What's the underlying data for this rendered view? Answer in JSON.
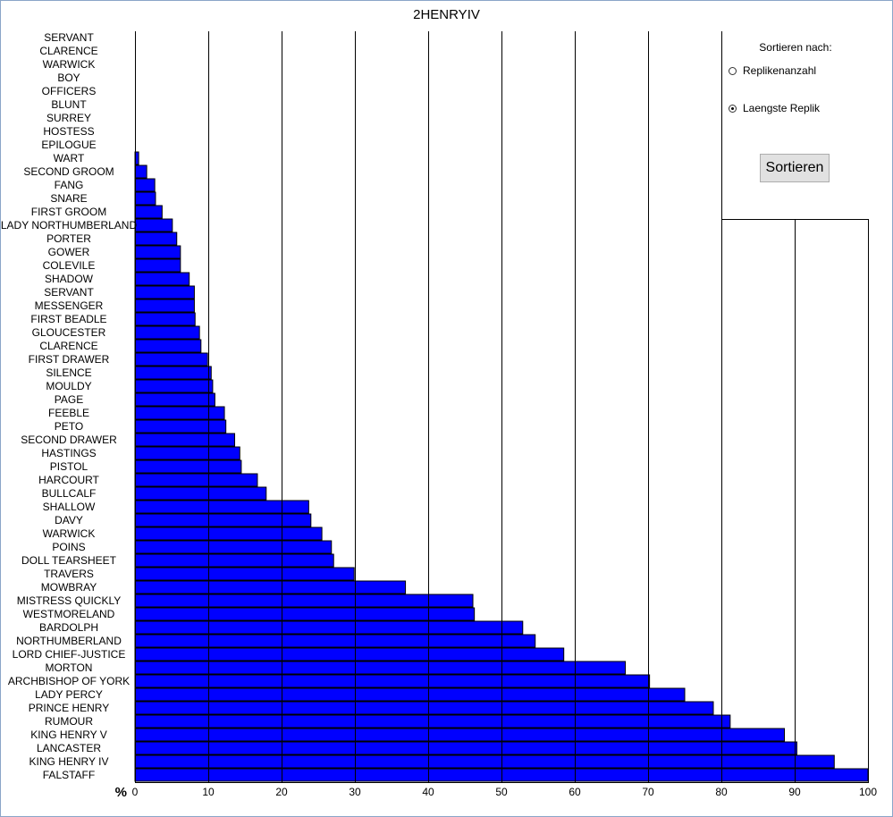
{
  "chart_data": {
    "type": "bar",
    "orientation": "horizontal",
    "title": "2HENRYIV",
    "xlabel": "%",
    "xlim": [
      0,
      100
    ],
    "xticks": [
      0,
      10,
      20,
      30,
      40,
      50,
      60,
      70,
      80,
      90,
      100
    ],
    "grid": true,
    "bar_color": "#0000ff",
    "categories": [
      "SERVANT",
      "CLARENCE",
      "WARWICK",
      "BOY",
      "OFFICERS",
      "BLUNT",
      "SURREY",
      "HOSTESS",
      "EPILOGUE",
      "WART",
      "SECOND GROOM",
      "FANG",
      "SNARE",
      "FIRST GROOM",
      "LADY NORTHUMBERLAND",
      "PORTER",
      "GOWER",
      "COLEVILE",
      "SHADOW",
      "SERVANT",
      "MESSENGER",
      "FIRST BEADLE",
      "GLOUCESTER",
      "CLARENCE",
      "FIRST DRAWER",
      "SILENCE",
      "MOULDY",
      "PAGE",
      "FEEBLE",
      "PETO",
      "SECOND DRAWER",
      "HASTINGS",
      "PISTOL",
      "HARCOURT",
      "BULLCALF",
      "SHALLOW",
      "DAVY",
      "WARWICK",
      "POINS",
      "DOLL TEARSHEET",
      "TRAVERS",
      "MOWBRAY",
      "MISTRESS QUICKLY",
      "WESTMORELAND",
      "BARDOLPH",
      "NORTHUMBERLAND",
      "LORD CHIEF-JUSTICE",
      "MORTON",
      "ARCHBISHOP OF YORK",
      "LADY PERCY",
      "PRINCE HENRY",
      "RUMOUR",
      "KING HENRY V",
      "LANCASTER",
      "KING HENRY IV",
      "FALSTAFF"
    ],
    "values": [
      0,
      0,
      0,
      0,
      0,
      0,
      0,
      0,
      0,
      0.5,
      1.6,
      2.7,
      2.8,
      3.7,
      5.1,
      5.7,
      6.2,
      6.2,
      7.4,
      8.1,
      8.1,
      8.2,
      8.8,
      9.0,
      9.9,
      10.4,
      10.6,
      10.9,
      12.2,
      12.4,
      13.6,
      14.3,
      14.5,
      16.7,
      17.9,
      23.7,
      24.0,
      25.5,
      26.8,
      27.1,
      29.9,
      36.9,
      46.1,
      46.3,
      52.9,
      54.6,
      58.5,
      66.9,
      70.2,
      75.0,
      78.9,
      81.2,
      88.6,
      90.3,
      95.4,
      100
    ]
  },
  "sort_panel": {
    "heading": "Sortieren nach:",
    "options": [
      {
        "label": "Replikenanzahl",
        "checked": false
      },
      {
        "label": "Laengste Replik",
        "checked": true
      }
    ],
    "button_label": "Sortieren"
  }
}
